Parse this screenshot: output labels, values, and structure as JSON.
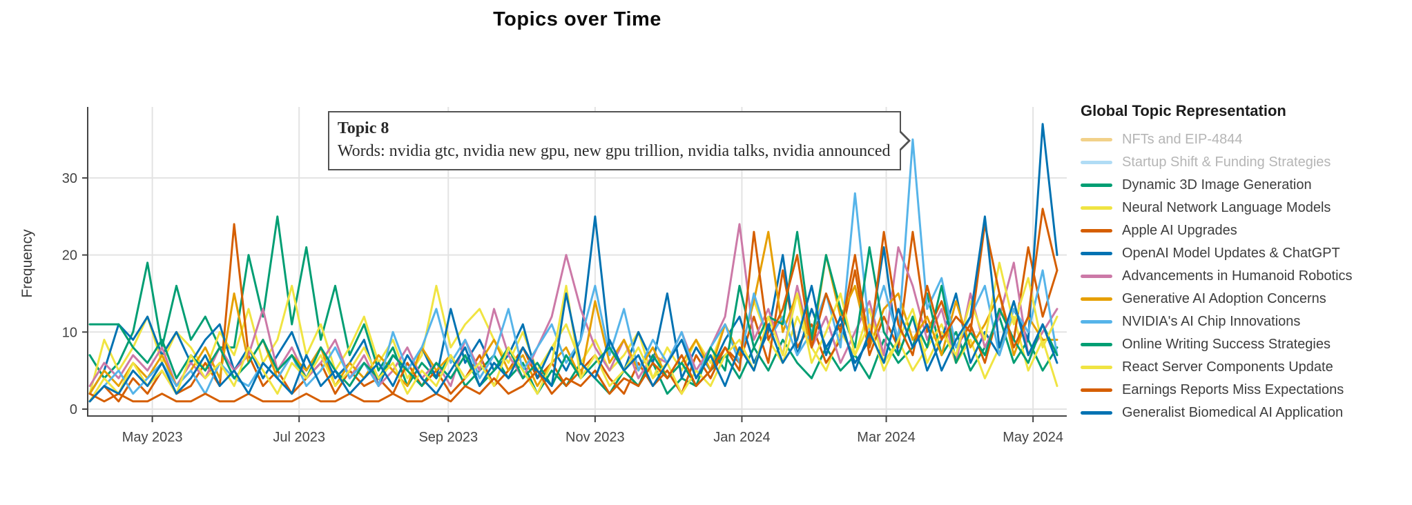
{
  "chart_data": {
    "type": "line",
    "title": "Topics over Time",
    "ylabel": "Frequency",
    "xlabel": "",
    "legend_title": "Global Topic Representation",
    "grid": true,
    "legend_position": "right",
    "ylim": [
      0,
      39
    ],
    "yticks": [
      0,
      10,
      20,
      30
    ],
    "xticks": [
      {
        "date": "2023-05-01",
        "label": "May 2023"
      },
      {
        "date": "2023-07-01",
        "label": "Jul 2023"
      },
      {
        "date": "2023-09-01",
        "label": "Sep 2023"
      },
      {
        "date": "2023-11-01",
        "label": "Nov 2023"
      },
      {
        "date": "2024-01-01",
        "label": "Jan 2024"
      },
      {
        "date": "2024-03-01",
        "label": "Mar 2024"
      },
      {
        "date": "2024-05-01",
        "label": "May 2024"
      }
    ],
    "x_start": "2023-04-05",
    "x_step_days": 6,
    "x_points": 68,
    "axis_color": "#444444",
    "gridline_color": "#e3e3e3",
    "series": [
      {
        "topic": 0,
        "name": "NFTs and EIP-4844",
        "color": "#E69F00",
        "muted_color": "#f2d189",
        "hidden": true,
        "values": null
      },
      {
        "topic": 1,
        "name": "Startup Shift & Funding Strategies",
        "color": "#56B4E9",
        "muted_color": "#b0dcf5",
        "hidden": true,
        "values": null
      },
      {
        "topic": 2,
        "name": "Dynamic 3D Image Generation",
        "color": "#009E73",
        "hidden": false,
        "values": [
          7,
          4,
          6,
          10,
          19,
          8,
          16,
          9,
          12,
          8,
          8,
          20,
          12,
          25,
          11,
          21,
          9,
          16,
          7,
          11,
          5,
          8,
          3,
          6,
          4,
          7,
          3,
          5,
          7,
          4,
          6,
          2,
          5,
          3,
          6,
          4,
          2,
          5,
          3,
          6,
          2,
          4,
          3,
          5,
          7,
          4,
          8,
          5,
          9,
          6,
          4,
          8,
          5,
          7,
          4,
          9,
          6,
          8,
          15,
          7,
          10,
          5,
          8,
          12,
          6,
          9,
          5,
          8
        ]
      },
      {
        "topic": 3,
        "name": "Neural Network Language Models",
        "color": "#F0E442",
        "hidden": false,
        "values": [
          2,
          9,
          5,
          8,
          12,
          6,
          10,
          8,
          5,
          10,
          7,
          13,
          6,
          9,
          16,
          7,
          11,
          5,
          8,
          12,
          6,
          9,
          4,
          7,
          16,
          8,
          11,
          13,
          9,
          6,
          10,
          5,
          8,
          11,
          6,
          9,
          5,
          7,
          10,
          4,
          8,
          5,
          9,
          6,
          11,
          7,
          14,
          9,
          6,
          12,
          8,
          5,
          10,
          7,
          13,
          6,
          9,
          5,
          8,
          11,
          6,
          9,
          4,
          8,
          12,
          5,
          9,
          3
        ]
      },
      {
        "topic": 4,
        "name": "Apple AI Upgrades",
        "color": "#D55E00",
        "hidden": false,
        "values": [
          1,
          3,
          1,
          4,
          2,
          5,
          2,
          3,
          6,
          3,
          24,
          7,
          3,
          5,
          2,
          4,
          6,
          2,
          5,
          3,
          4,
          2,
          6,
          3,
          5,
          2,
          4,
          7,
          3,
          5,
          8,
          4,
          6,
          3,
          5,
          7,
          4,
          2,
          6,
          3,
          5,
          2,
          7,
          4,
          8,
          6,
          12,
          6,
          18,
          8,
          11,
          6,
          9,
          18,
          7,
          12,
          8,
          23,
          10,
          14,
          8,
          11,
          6,
          13,
          9,
          21,
          12,
          18
        ]
      },
      {
        "topic": 5,
        "name": "OpenAI Model Updates & ChatGPT",
        "color": "#0072B2",
        "hidden": false,
        "values": [
          2,
          5,
          11,
          9,
          12,
          7,
          10,
          6,
          9,
          11,
          5,
          8,
          4,
          7,
          10,
          5,
          8,
          4,
          6,
          9,
          3,
          7,
          5,
          8,
          4,
          13,
          6,
          9,
          5,
          7,
          11,
          4,
          8,
          5,
          9,
          25,
          8,
          5,
          10,
          6,
          15,
          4,
          8,
          5,
          9,
          12,
          6,
          10,
          20,
          7,
          13,
          8,
          11,
          6,
          9,
          21,
          7,
          12,
          5,
          9,
          15,
          6,
          10,
          7,
          13,
          9,
          37,
          20
        ]
      },
      {
        "topic": 6,
        "name": "Advancements in Humanoid Robotics",
        "color": "#CC79A7",
        "hidden": false,
        "values": [
          3,
          6,
          4,
          7,
          5,
          8,
          3,
          6,
          4,
          8,
          5,
          7,
          13,
          5,
          8,
          4,
          6,
          9,
          4,
          7,
          3,
          5,
          8,
          4,
          6,
          3,
          9,
          5,
          13,
          7,
          4,
          8,
          12,
          20,
          13,
          8,
          5,
          9,
          4,
          7,
          6,
          10,
          5,
          8,
          12,
          24,
          9,
          13,
          7,
          16,
          8,
          12,
          6,
          10,
          14,
          7,
          21,
          16,
          9,
          13,
          6,
          15,
          8,
          12,
          19,
          7,
          10,
          13
        ]
      },
      {
        "topic": 7,
        "name": "Generative AI Adoption Concerns",
        "color": "#E69F00",
        "hidden": false,
        "values": [
          2,
          5,
          3,
          6,
          4,
          7,
          3,
          5,
          8,
          4,
          15,
          6,
          9,
          4,
          7,
          5,
          8,
          3,
          6,
          4,
          7,
          5,
          3,
          8,
          5,
          7,
          4,
          6,
          9,
          5,
          7,
          3,
          6,
          8,
          4,
          14,
          6,
          9,
          5,
          8,
          4,
          6,
          9,
          5,
          11,
          7,
          14,
          23,
          10,
          15,
          8,
          20,
          12,
          16,
          8,
          13,
          15,
          9,
          12,
          7,
          14,
          8,
          11,
          15,
          7,
          12,
          9,
          9
        ]
      },
      {
        "topic": 8,
        "name": "NVIDIA's AI Chip Innovations",
        "color": "#56B4E9",
        "hidden": false,
        "values": [
          1,
          3,
          5,
          2,
          4,
          6,
          3,
          5,
          2,
          6,
          4,
          3,
          6,
          4,
          7,
          3,
          5,
          8,
          4,
          6,
          3,
          10,
          5,
          8,
          13,
          6,
          9,
          4,
          7,
          13,
          5,
          8,
          11,
          6,
          9,
          16,
          7,
          13,
          5,
          9,
          6,
          10,
          4,
          8,
          11,
          6,
          15,
          9,
          12,
          7,
          10,
          15,
          8,
          28,
          10,
          16,
          9,
          35,
          13,
          17,
          8,
          12,
          16,
          7,
          13,
          10,
          18,
          7
        ]
      },
      {
        "topic": 9,
        "name": "Online Writing Success Strategies",
        "color": "#009E73",
        "hidden": false,
        "values": [
          11,
          11,
          11,
          8,
          6,
          9,
          4,
          7,
          5,
          8,
          4,
          6,
          9,
          5,
          7,
          4,
          8,
          5,
          3,
          6,
          4,
          7,
          5,
          3,
          6,
          4,
          7,
          3,
          5,
          8,
          4,
          6,
          3,
          7,
          4,
          6,
          8,
          5,
          3,
          7,
          4,
          6,
          3,
          8,
          5,
          16,
          8,
          12,
          11,
          23,
          9,
          20,
          13,
          8,
          21,
          10,
          7,
          12,
          8,
          16,
          6,
          10,
          7,
          13,
          9,
          6,
          11,
          7
        ]
      },
      {
        "topic": 10,
        "name": "React Server Components Update",
        "color": "#F0E442",
        "hidden": false,
        "values": [
          1,
          4,
          2,
          6,
          3,
          5,
          2,
          7,
          4,
          6,
          3,
          8,
          5,
          2,
          6,
          4,
          7,
          3,
          5,
          8,
          4,
          6,
          2,
          5,
          3,
          7,
          4,
          6,
          3,
          8,
          5,
          2,
          6,
          16,
          4,
          7,
          3,
          5,
          8,
          4,
          6,
          2,
          5,
          3,
          7,
          9,
          5,
          12,
          7,
          15,
          6,
          10,
          15,
          7,
          11,
          5,
          9,
          13,
          6,
          10,
          7,
          14,
          9,
          19,
          11,
          17,
          8,
          12
        ]
      },
      {
        "topic": 11,
        "name": "Earnings Reports Miss Expectations",
        "color": "#D55E00",
        "hidden": false,
        "values": [
          2,
          1,
          2,
          1,
          1,
          2,
          1,
          1,
          2,
          1,
          1,
          2,
          1,
          1,
          1,
          2,
          1,
          1,
          2,
          1,
          1,
          2,
          1,
          1,
          2,
          1,
          3,
          2,
          4,
          2,
          3,
          5,
          2,
          4,
          3,
          5,
          2,
          4,
          3,
          6,
          4,
          7,
          3,
          5,
          8,
          5,
          23,
          9,
          13,
          20,
          8,
          15,
          10,
          20,
          8,
          23,
          11,
          7,
          16,
          9,
          12,
          10,
          24,
          15,
          8,
          12,
          26,
          18
        ]
      },
      {
        "topic": 12,
        "name": "Generalist Biomedical AI Application",
        "color": "#0072B2",
        "hidden": false,
        "values": [
          1,
          3,
          2,
          5,
          3,
          6,
          2,
          4,
          7,
          3,
          5,
          2,
          6,
          4,
          2,
          7,
          3,
          5,
          2,
          4,
          6,
          3,
          7,
          4,
          2,
          5,
          8,
          3,
          6,
          4,
          8,
          5,
          3,
          15,
          6,
          4,
          9,
          5,
          7,
          3,
          6,
          9,
          4,
          7,
          3,
          8,
          5,
          11,
          6,
          9,
          16,
          7,
          12,
          5,
          10,
          6,
          13,
          8,
          11,
          5,
          9,
          12,
          25,
          8,
          14,
          7,
          11,
          6
        ]
      }
    ],
    "tooltip": {
      "title": "Topic 8",
      "words": "Words: nvidia gtc, nvidia new gpu, new gpu trillion, nvidia talks, nvidia announced",
      "anchor_series": "NVIDIA's AI Chip Innovations",
      "anchor_date": "2024-03-12",
      "anchor_value": 35
    }
  }
}
